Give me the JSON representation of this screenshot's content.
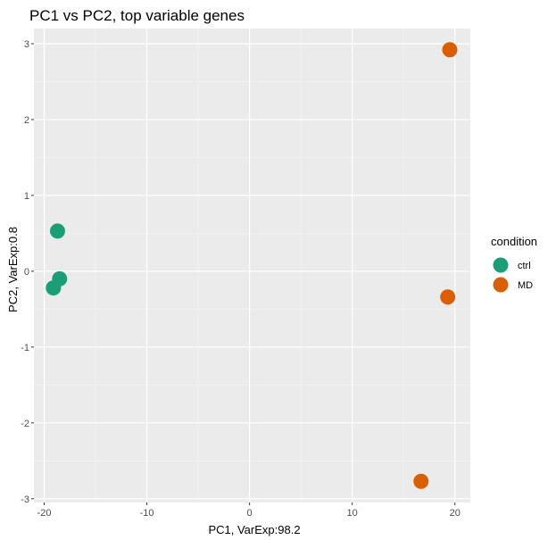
{
  "chart_data": {
    "type": "scatter",
    "title": "PC1 vs PC2, top variable genes",
    "xlabel": "PC1, VarExp:98.2",
    "ylabel": "PC2, VarExp:0.8",
    "xlim": [
      -21,
      21.5
    ],
    "ylim": [
      -3.05,
      3.2
    ],
    "xticks": [
      -20,
      -10,
      0,
      10,
      20
    ],
    "yticks": [
      -3,
      -2,
      -1,
      0,
      1,
      2,
      3
    ],
    "xtick_labels": [
      "-20",
      "-10",
      "0",
      "10",
      "20"
    ],
    "ytick_labels": [
      "-3",
      "-2",
      "-1",
      "0",
      "1",
      "2",
      "3"
    ],
    "grid": true,
    "background": "#ebebeb",
    "legend": {
      "title": "condition",
      "position": "right",
      "entries": [
        {
          "label": "ctrl",
          "color": "#1b9e77"
        },
        {
          "label": "MD",
          "color": "#d95f02"
        }
      ]
    },
    "series": [
      {
        "name": "ctrl",
        "color": "#1b9e77",
        "points": [
          {
            "x": -18.7,
            "y": 0.53
          },
          {
            "x": -18.5,
            "y": -0.1
          },
          {
            "x": -19.1,
            "y": -0.22
          }
        ]
      },
      {
        "name": "MD",
        "color": "#d95f02",
        "points": [
          {
            "x": 19.5,
            "y": 2.92
          },
          {
            "x": 19.3,
            "y": -0.34
          },
          {
            "x": 16.7,
            "y": -2.77
          }
        ]
      }
    ]
  }
}
